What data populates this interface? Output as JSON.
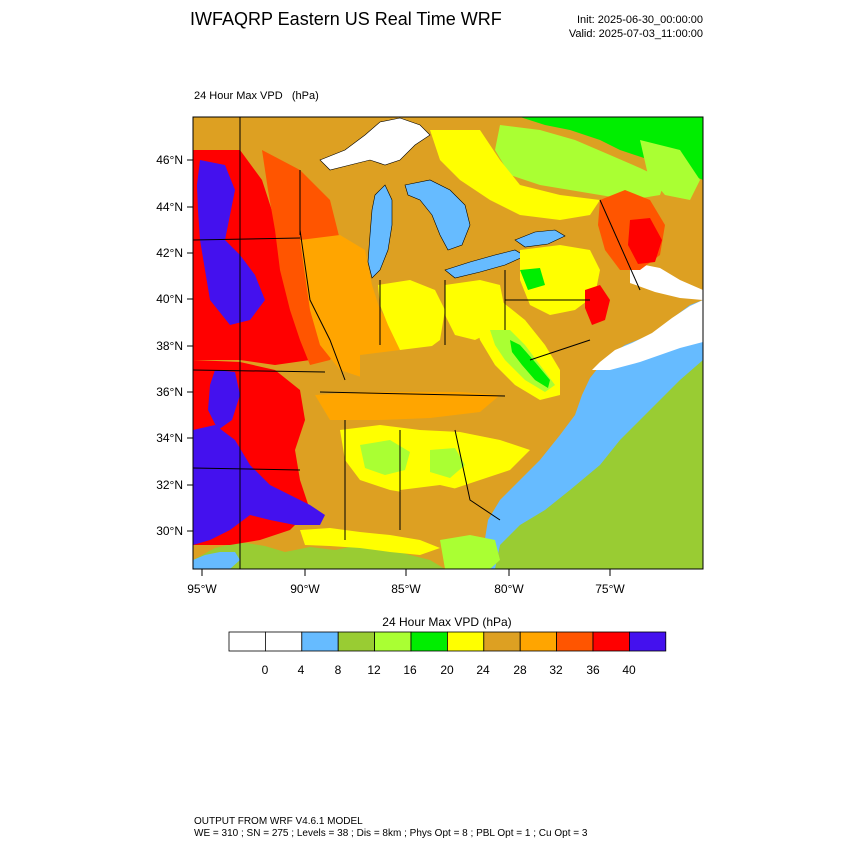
{
  "header": {
    "title": "IWFAQRP Eastern US Real Time WRF",
    "init": "Init: 2025-06-30_00:00:00",
    "valid": "Valid: 2025-07-03_11:00:00"
  },
  "field": {
    "label": "24 Hour Max VPD",
    "units": "(hPa)"
  },
  "map": {
    "lat_ticks": [
      "46°N",
      "44°N",
      "42°N",
      "40°N",
      "38°N",
      "36°N",
      "34°N",
      "32°N",
      "30°N"
    ],
    "lon_ticks": [
      "95°W",
      "90°W",
      "85°W",
      "80°W",
      "75°W"
    ],
    "colors": {
      "water": "#66bbff",
      "land_low": "#99cc33",
      "no_data": "#ffffff"
    }
  },
  "colorbar": {
    "title": "24 Hour Max VPD  (hPa)",
    "tick_labels": [
      "0",
      "4",
      "8",
      "12",
      "16",
      "20",
      "24",
      "28",
      "32",
      "36",
      "40"
    ],
    "colors": [
      "#ffffff",
      "#ffffff",
      "#66bbff",
      "#99cc33",
      "#aaff33",
      "#00ee00",
      "#ffff00",
      "#dda022",
      "#ffa500",
      "#ff5500",
      "#ff0000",
      "#4411ee"
    ]
  },
  "footer": {
    "line1": "OUTPUT FROM WRF V4.6.1 MODEL",
    "line2": "WE = 310 ; SN = 275 ; Levels = 38 ; Dis = 8km ; Phys Opt = 8 ; PBL Opt = 1 ; Cu Opt = 3"
  }
}
